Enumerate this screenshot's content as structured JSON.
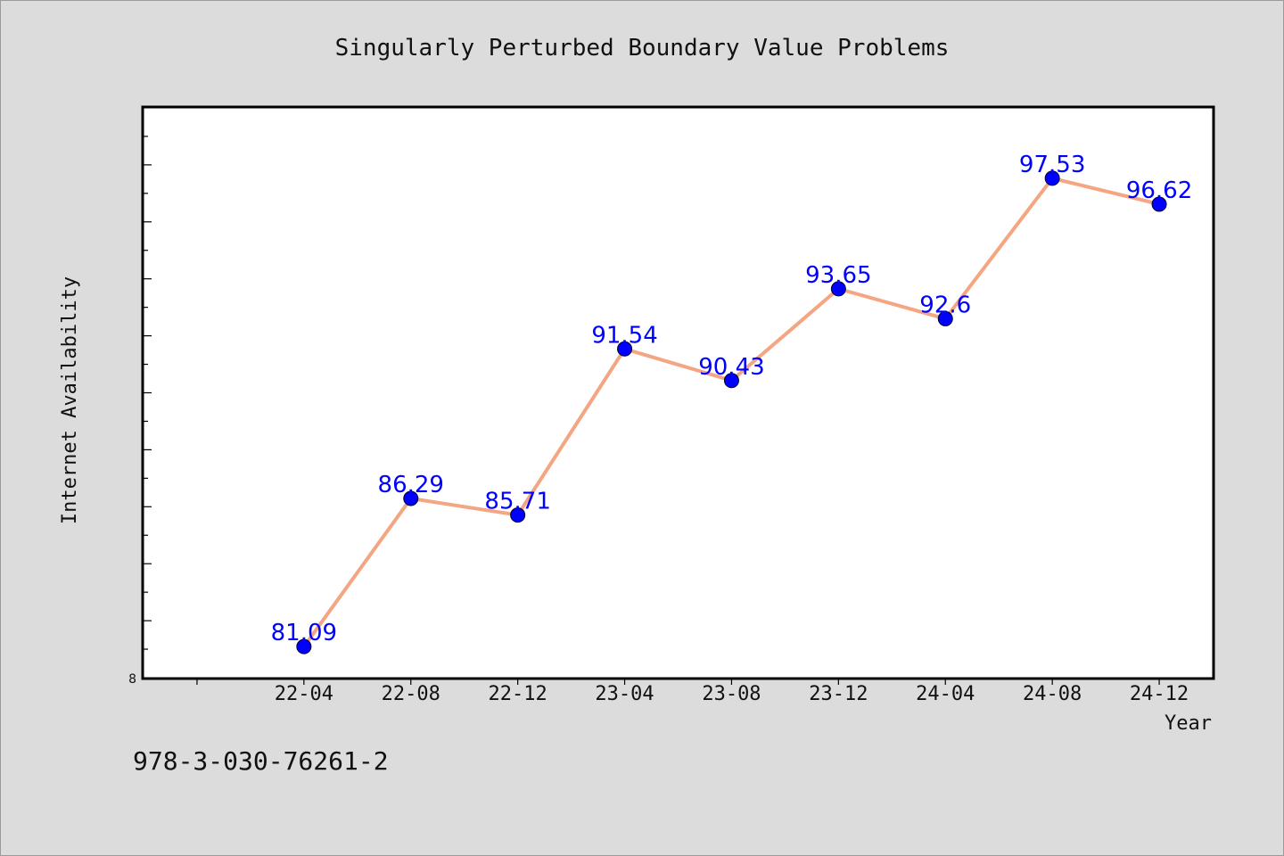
{
  "chart_data": {
    "type": "line",
    "title": "Singularly Perturbed Boundary Value Problems",
    "xlabel": "Year",
    "ylabel": "Internet Availability",
    "categories": [
      "22-04",
      "22-08",
      "22-12",
      "23-04",
      "23-08",
      "23-12",
      "24-04",
      "24-08",
      "24-12"
    ],
    "series": [
      {
        "values": [
          81.09,
          86.29,
          85.71,
          91.54,
          90.43,
          93.65,
          92.6,
          97.53,
          96.62
        ]
      }
    ],
    "data_labels": [
      "81.09",
      "86.29",
      "85.71",
      "91.54",
      "90.43",
      "93.65",
      "92.6",
      "97.53",
      "96.62"
    ],
    "y_tick_label": "8",
    "ylim": [
      80,
      100
    ],
    "x_range": [
      -1.5,
      8.5
    ],
    "grid": false,
    "colors": {
      "line": "#f4a582",
      "marker": "#0000ff",
      "label": "#0000ff",
      "plot_bg": "#ffffff",
      "page_bg": "#dcdcdc"
    }
  },
  "footnote": "978-3-030-76261-2"
}
